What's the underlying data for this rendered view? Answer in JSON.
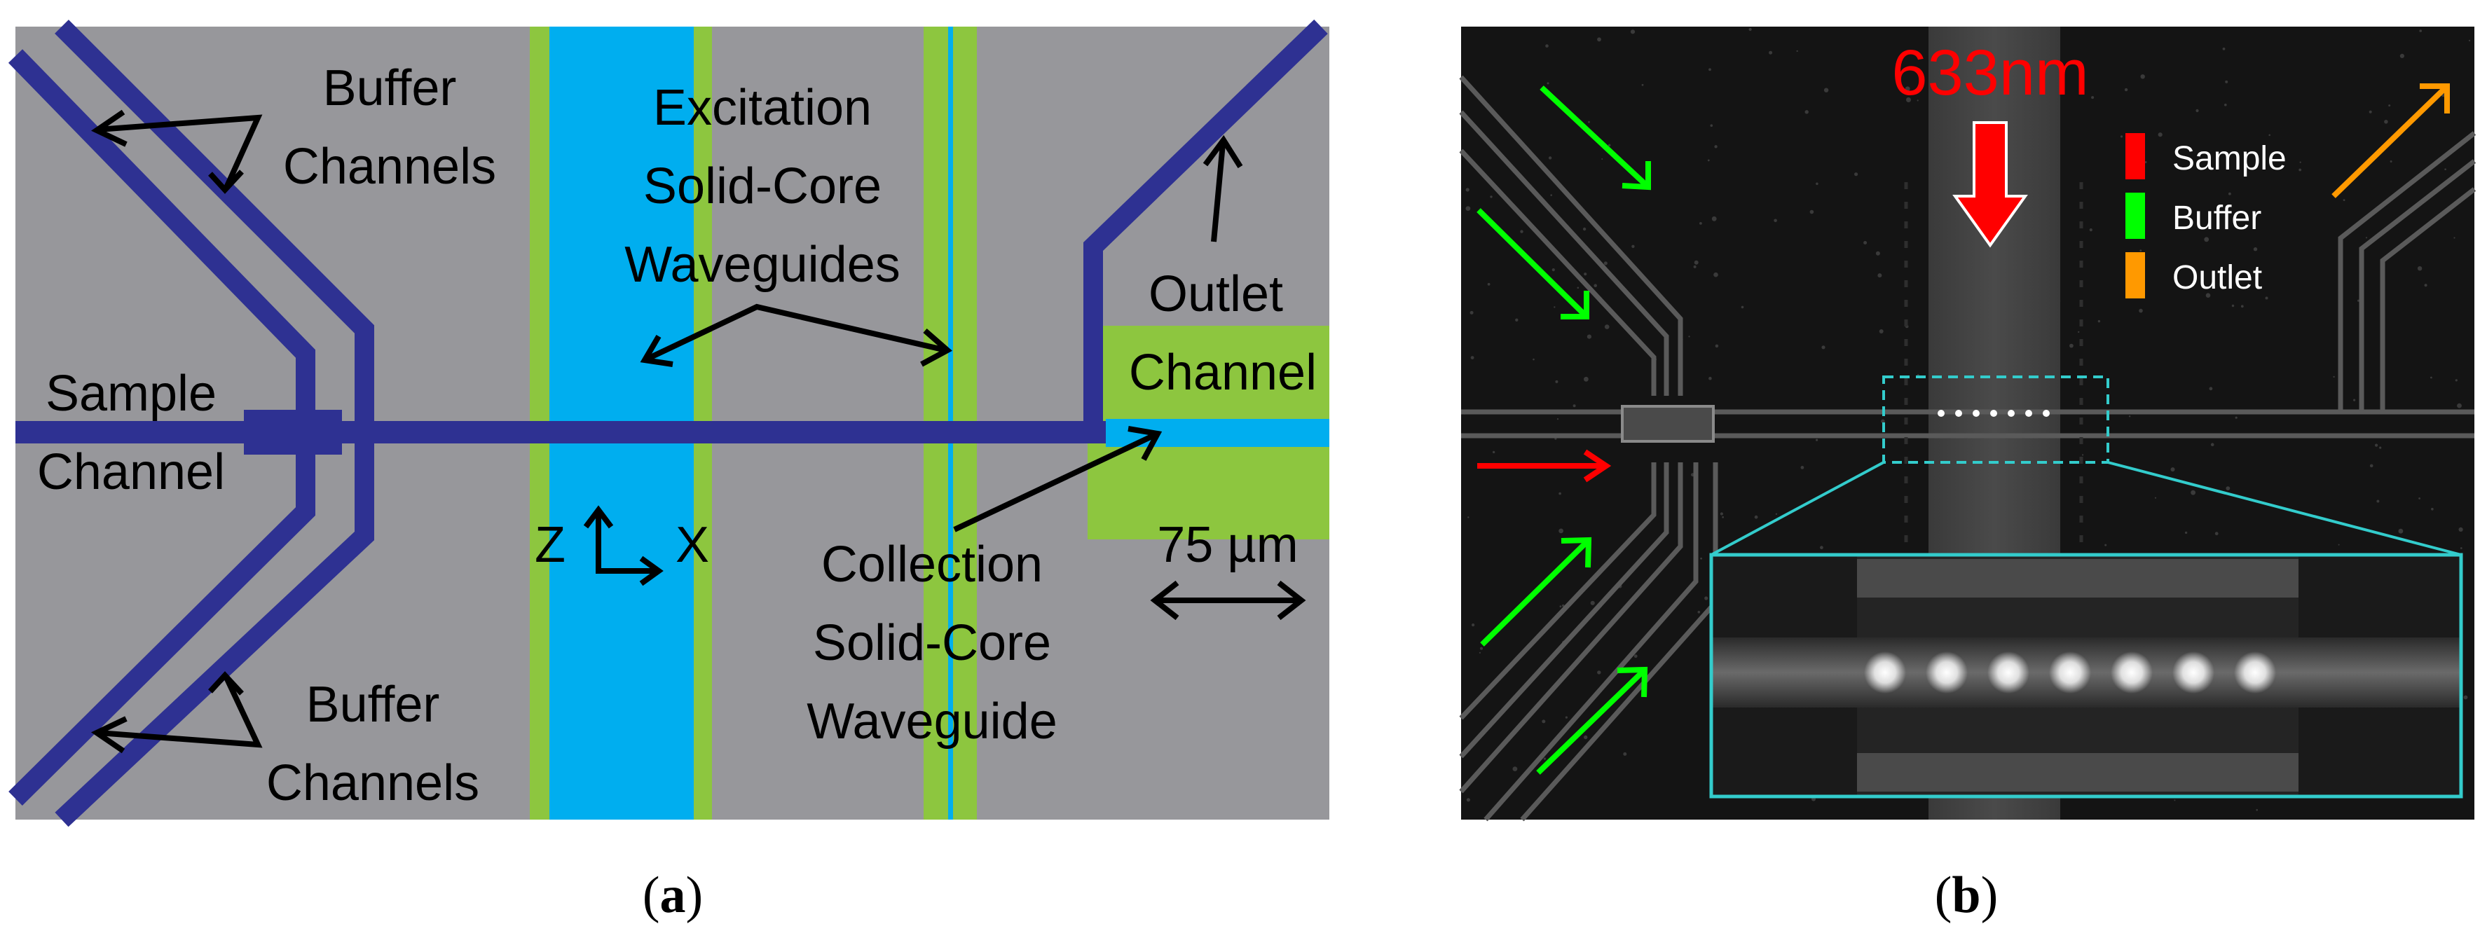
{
  "panel_a": {
    "labels": {
      "buffer_top_1": "Buffer",
      "buffer_top_2": "Channels",
      "excitation_1": "Excitation",
      "excitation_2": "Solid-Core",
      "excitation_3": "Waveguides",
      "outlet_1": "Outlet",
      "outlet_2": "Channel",
      "sample_1": "Sample",
      "sample_2": "Channel",
      "axis_z": "Z",
      "axis_x": "X",
      "collection_1": "Collection",
      "collection_2": "Solid-Core",
      "collection_3": "Waveguide",
      "scale": "75 µm",
      "buffer_bottom_1": "Buffer",
      "buffer_bottom_2": "Channels"
    },
    "caption_letter": "a",
    "colors": {
      "substrate": "#97979b",
      "channel": "#2e3192",
      "waveguide_core": "#00aeef",
      "waveguide_cladding": "#8dc63f"
    }
  },
  "panel_b": {
    "wavelength_label": "633nm",
    "legend": [
      {
        "label": "Sample",
        "color": "#ff0000"
      },
      {
        "label": "Buffer",
        "color": "#00ff00"
      },
      {
        "label": "Outlet",
        "color": "#ff9900"
      }
    ],
    "caption_letter": "b",
    "colors": {
      "background": "#141414",
      "inset_border": "#33cccc"
    }
  }
}
